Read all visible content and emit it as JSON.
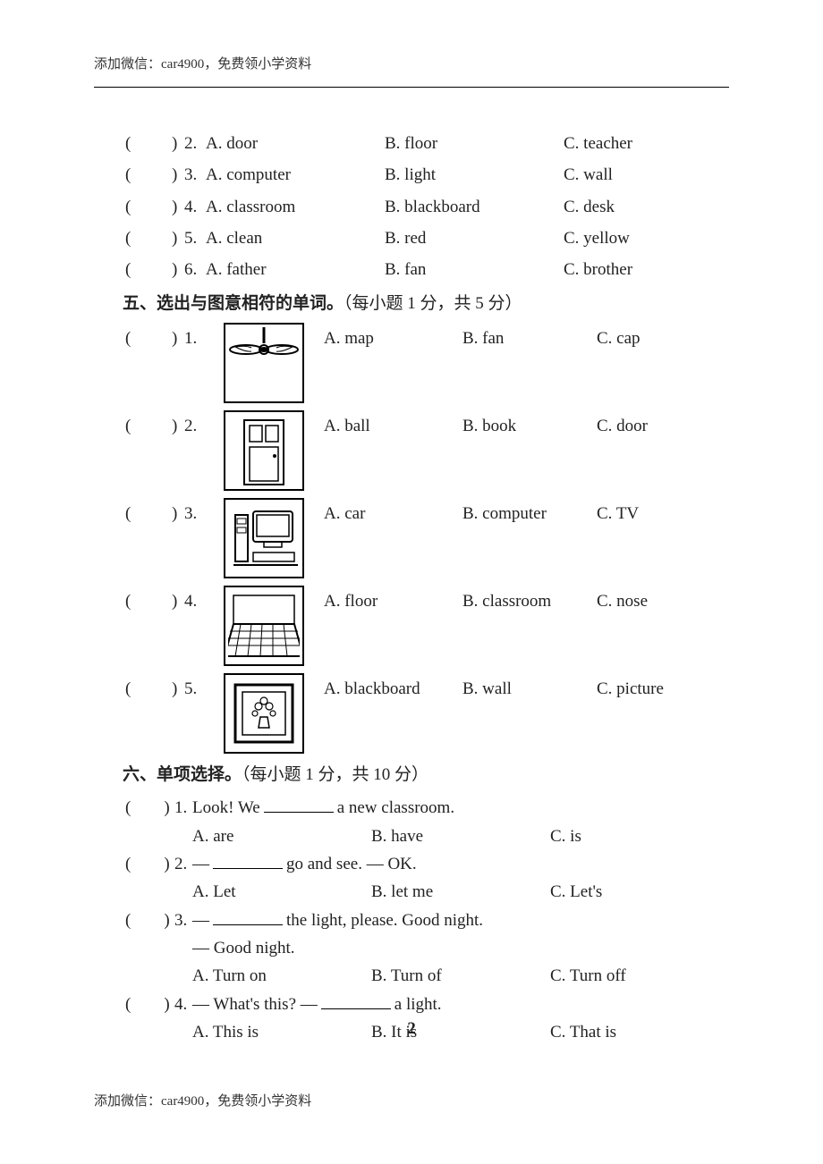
{
  "header": "添加微信：car4900，免费领小学资料",
  "footer": "添加微信：car4900，免费领小学资料",
  "page_number": "2",
  "section4_rows": [
    {
      "num": "2.",
      "A": "A. door",
      "B": "B. floor",
      "C": "C. teacher"
    },
    {
      "num": "3.",
      "A": "A. computer",
      "B": "B. light",
      "C": "C. wall"
    },
    {
      "num": "4.",
      "A": "A. classroom",
      "B": "B. blackboard",
      "C": "C. desk"
    },
    {
      "num": "5.",
      "A": "A. clean",
      "B": "B. red",
      "C": "C. yellow"
    },
    {
      "num": "6.",
      "A": "A. father",
      "B": "B. fan",
      "C": "C. brother"
    }
  ],
  "section5_title": "五、选出与图意相符的单词。",
  "section5_note": "（每小题 1 分，共 5 分）",
  "section5_rows": [
    {
      "num": "1.",
      "icon": "fan",
      "A": "A. map",
      "B": "B. fan",
      "C": "C. cap"
    },
    {
      "num": "2.",
      "icon": "door",
      "A": "A. ball",
      "B": "B. book",
      "C": "C. door"
    },
    {
      "num": "3.",
      "icon": "computer",
      "A": "A. car",
      "B": "B. computer",
      "C": "C. TV"
    },
    {
      "num": "4.",
      "icon": "floor",
      "A": "A. floor",
      "B": "B. classroom",
      "C": "C. nose"
    },
    {
      "num": "5.",
      "icon": "picture",
      "A": "A. blackboard",
      "B": "B. wall",
      "C": "C. picture"
    }
  ],
  "section6_title": "六、单项选择。",
  "section6_note": "（每小题 1 分，共 10 分）",
  "section6_rows": [
    {
      "num": "1.",
      "stem_pre": "Look! We ",
      "stem_post": " a new classroom.",
      "A": "A. are",
      "B": "B. have",
      "C": "C. is"
    },
    {
      "num": "2.",
      "stem_pre": "— ",
      "stem_post": " go and see.  — OK.",
      "A": "A. Let",
      "B": "B. let me",
      "C": "C. Let's"
    },
    {
      "num": "3.",
      "stem_pre": "— ",
      "stem_post": " the light, please. Good night.",
      "line2": "— Good night.",
      "A": "A. Turn on",
      "B": "B. Turn of",
      "C": "C. Turn off"
    },
    {
      "num": "4.",
      "stem_pre": "— What's this?   — ",
      "stem_post": " a light.",
      "A": "A. This is",
      "B": "B. It is",
      "C": "C. That is"
    }
  ],
  "paren_open": "(",
  "paren_close": ")",
  "colors": {
    "text": "#222222",
    "border": "#000000",
    "bg": "#ffffff"
  }
}
